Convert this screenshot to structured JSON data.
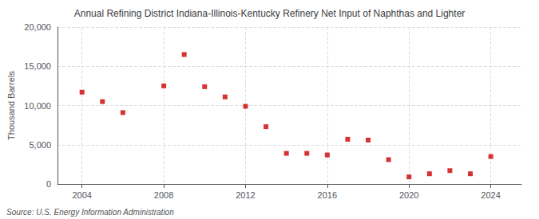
{
  "chart_data": {
    "type": "scatter",
    "title": "Annual Refining District Indiana-Illinois-Kentucky Refinery Net Input of Naphthas and Lighter",
    "ylabel": "Thousand Barrels",
    "annotations": [
      "Source: U.S. Energy Information Administration"
    ],
    "x": [
      2004,
      2005,
      2006,
      2008,
      2009,
      2010,
      2011,
      2012,
      2013,
      2014,
      2015,
      2016,
      2017,
      2018,
      2019,
      2020,
      2021,
      2022,
      2023,
      2024
    ],
    "values": [
      11700,
      10500,
      9100,
      12500,
      16500,
      12400,
      11100,
      9900,
      7300,
      3900,
      3900,
      3700,
      5700,
      5600,
      3100,
      900,
      1300,
      1700,
      1300,
      3500
    ],
    "color": "#cc0000",
    "marker": "square",
    "xlim": [
      2002.8,
      2025.5
    ],
    "xticks": [
      2004,
      2008,
      2012,
      2016,
      2020,
      2024
    ],
    "ylim": [
      0,
      20000
    ],
    "yticks": [
      0,
      {
        "value": 5000,
        "label": "5,000"
      },
      {
        "value": 10000,
        "label": "10,000"
      },
      {
        "value": 15000,
        "label": "15,000"
      },
      {
        "value": 20000,
        "label": "20,000"
      }
    ],
    "grid": true
  }
}
